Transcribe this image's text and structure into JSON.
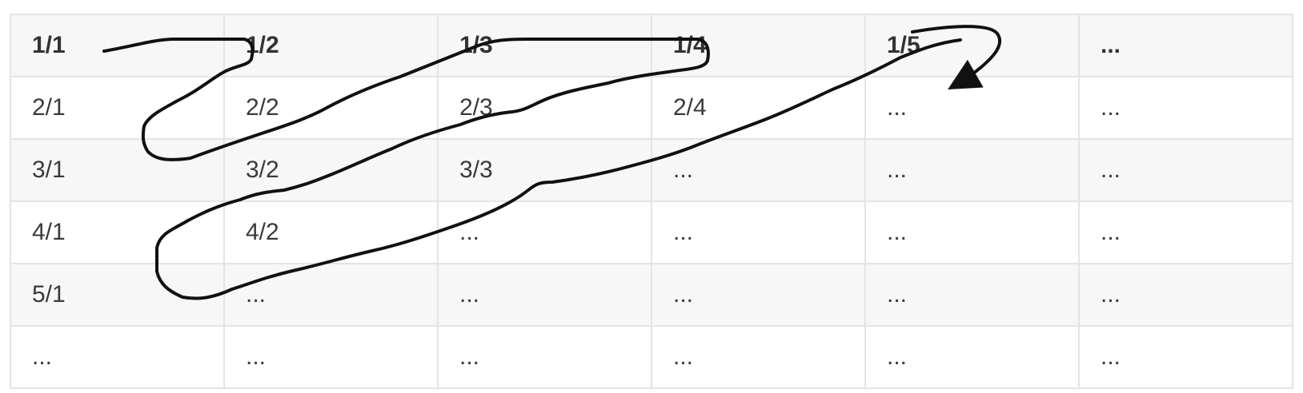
{
  "grid": {
    "rows": [
      [
        "1/1",
        "1/2",
        "1/3",
        "1/4",
        "1/5",
        "..."
      ],
      [
        "2/1",
        "2/2",
        "2/3",
        "2/4",
        "...",
        "..."
      ],
      [
        "3/1",
        "3/2",
        "3/3",
        "...",
        "...",
        "..."
      ],
      [
        "4/1",
        "4/2",
        "...",
        "...",
        "...",
        "..."
      ],
      [
        "5/1",
        "...",
        "...",
        "...",
        "...",
        "..."
      ],
      [
        "...",
        "...",
        "...",
        "...",
        "...",
        "..."
      ]
    ]
  },
  "colors": {
    "stripe": "#f7f7f7",
    "border": "#e4e4e4",
    "text": "#3a3a3a",
    "path": "#111111"
  },
  "path_icon": "zigzag-enumeration-arrow"
}
